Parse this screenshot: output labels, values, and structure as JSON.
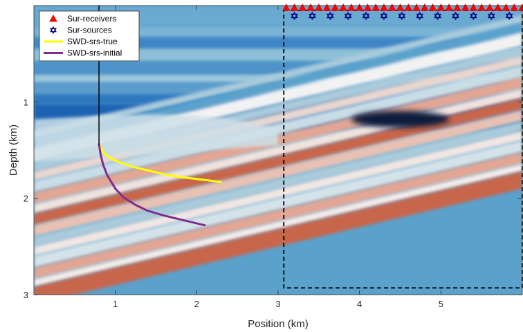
{
  "chart_data": {
    "type": "line",
    "xlabel": "Position (km)",
    "ylabel": "Depth (km)",
    "xlim": [
      0,
      6
    ],
    "ylim": [
      0,
      3
    ],
    "y_reversed": true,
    "x_ticks": [
      1,
      2,
      3,
      4,
      5
    ],
    "y_ticks": [
      1,
      2,
      3
    ],
    "grid": false,
    "legend_position": "top-left",
    "background": "seismic velocity model image (blue-white-red colormap)",
    "colors": {
      "deep_blue": "#1f63b4",
      "mid_blue": "#5aa1cc",
      "light_blue": "#a9cbdb",
      "white": "#f2f2f2",
      "salmon": "#e1a694",
      "red": "#c8664c",
      "anomaly": "#111a3c"
    },
    "series": [
      {
        "name": "Sur-receivers",
        "marker": "triangle",
        "color": "#ff0000",
        "x": [
          3.1,
          3.2,
          3.3,
          3.4,
          3.5,
          3.6,
          3.7,
          3.8,
          3.9,
          4.0,
          4.1,
          4.2,
          4.3,
          4.4,
          4.5,
          4.6,
          4.7,
          4.8,
          4.9,
          5.0,
          5.1,
          5.2,
          5.3,
          5.4,
          5.5,
          5.6,
          5.7,
          5.8,
          5.9,
          6.0
        ],
        "y": 0.03
      },
      {
        "name": "Sur-sources",
        "marker": "hexagram",
        "color": "#000080",
        "x": [
          3.2,
          3.42,
          3.64,
          3.86,
          4.08,
          4.3,
          4.52,
          4.74,
          4.96,
          5.18,
          5.4,
          5.62,
          5.84
        ],
        "y": 0.05
      },
      {
        "name": "SWD-srs-true",
        "color": "#ffff00",
        "x": [
          0.8,
          0.85,
          0.9,
          1.0,
          1.2,
          1.4,
          1.6,
          1.8,
          2.0,
          2.2,
          2.3
        ],
        "y": [
          1.44,
          1.52,
          1.56,
          1.61,
          1.67,
          1.71,
          1.75,
          1.78,
          1.8,
          1.82,
          1.83
        ]
      },
      {
        "name": "SWD-srs-initial",
        "color": "#7e2f8e",
        "x": [
          0.8,
          0.82,
          0.85,
          0.9,
          1.0,
          1.1,
          1.25,
          1.4,
          1.6,
          1.8,
          2.0,
          2.1
        ],
        "y": [
          1.44,
          1.55,
          1.65,
          1.76,
          1.9,
          1.99,
          2.07,
          2.13,
          2.18,
          2.22,
          2.26,
          2.28
        ]
      },
      {
        "name": "borehole",
        "color": "#000000",
        "x": [
          0.8,
          0.8
        ],
        "y": [
          0.0,
          1.44
        ]
      }
    ],
    "box": {
      "x": [
        3.07,
        6.0
      ],
      "y": [
        0.05,
        2.93
      ],
      "style": "dashed",
      "color": "#000000"
    }
  }
}
